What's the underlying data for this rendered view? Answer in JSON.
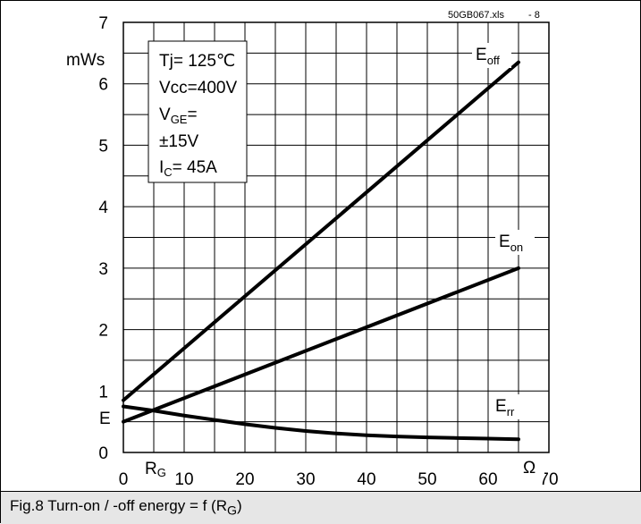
{
  "source_tag": "50GB067.xls",
  "fig_number": "- 8",
  "caption": {
    "main": "Fig.8 Turn-on / -off energy = f (R",
    "sub": "G",
    "tail": ")"
  },
  "conditions": {
    "tj": "Tj= 125℃",
    "vcc": "Vcc=400V",
    "vge_main": "V",
    "vge_sub": "GE",
    "vge_tail": "=",
    "vge_value": "±15V",
    "ic_main": "I",
    "ic_sub": "C",
    "ic_tail": "= 45A"
  },
  "chart_data": {
    "type": "line",
    "x_ticks": [
      "0",
      "10",
      "20",
      "30",
      "40",
      "50",
      "60",
      "70"
    ],
    "y_ticks": [
      "0",
      "1",
      "2",
      "3",
      "4",
      "5",
      "6",
      "7"
    ],
    "y_unit": "mWs",
    "y_symbol": "E",
    "x_symbol_main": "R",
    "x_symbol_sub": "G",
    "x_unit": "Ω",
    "xlim": [
      0,
      70
    ],
    "ylim": [
      0,
      7
    ],
    "grid": true,
    "series": [
      {
        "name": "E",
        "name_sub": "off",
        "x": [
          0,
          65
        ],
        "y": [
          0.85,
          6.35
        ]
      },
      {
        "name": "E",
        "name_sub": "on",
        "x": [
          0,
          65
        ],
        "y": [
          0.5,
          3.0
        ]
      },
      {
        "name": "E",
        "name_sub": "rr",
        "x": [
          0,
          5,
          10,
          15,
          20,
          25,
          30,
          35,
          40,
          45,
          50,
          55,
          60,
          65
        ],
        "y": [
          0.75,
          0.68,
          0.6,
          0.53,
          0.46,
          0.4,
          0.35,
          0.31,
          0.28,
          0.26,
          0.245,
          0.235,
          0.225,
          0.215
        ]
      }
    ]
  }
}
